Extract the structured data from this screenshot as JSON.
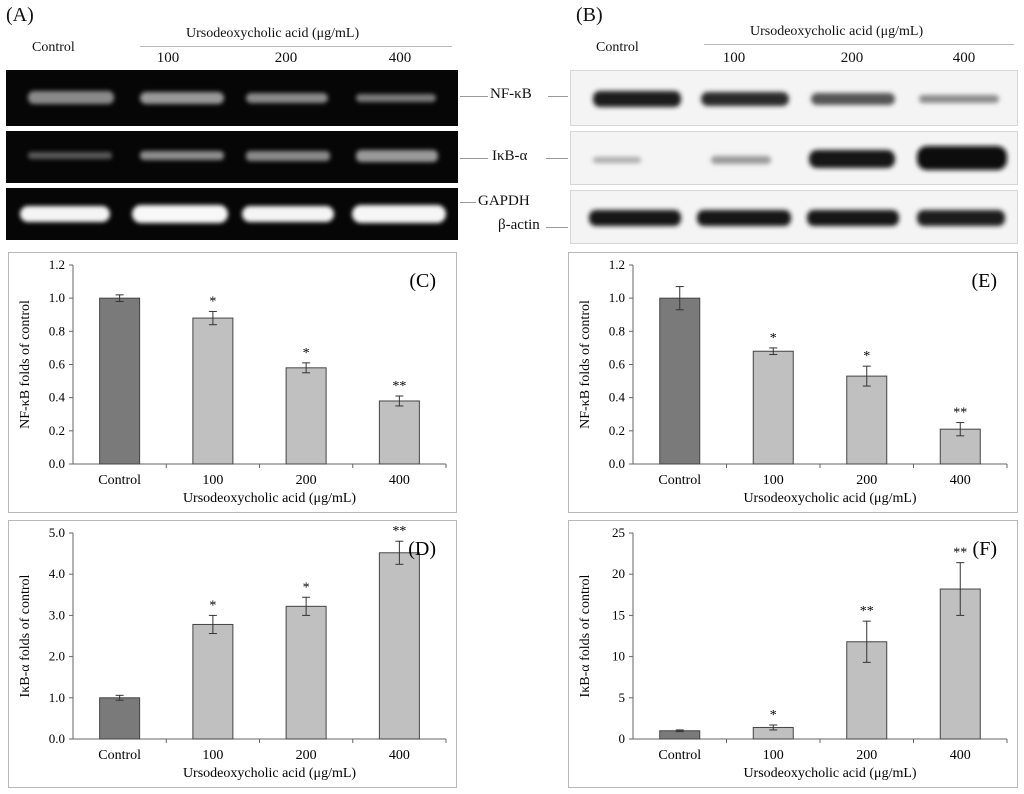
{
  "panels": {
    "A": "(A)",
    "B": "(B)"
  },
  "blots": {
    "left": {
      "control_label": "Control",
      "treatment_header": "Ursodeoxycholic acid (μg/mL)",
      "doses": [
        "100",
        "200",
        "400"
      ],
      "bands": [
        "NF-κB",
        "IκB-α",
        "GAPDH"
      ]
    },
    "right": {
      "control_label": "Control",
      "treatment_header": "Ursodeoxycholic acid (μg/mL)",
      "doses": [
        "100",
        "200",
        "400"
      ],
      "bands": [
        "NF-κB",
        "IκB-α",
        "β-actin"
      ]
    }
  },
  "chart_data": [
    {
      "panel": "(C)",
      "type": "bar",
      "categories": [
        "Control",
        "100",
        "200",
        "400"
      ],
      "values": [
        1.0,
        0.88,
        0.58,
        0.38
      ],
      "errors": [
        0.02,
        0.04,
        0.03,
        0.03
      ],
      "significance": [
        "",
        "*",
        "*",
        "**"
      ],
      "xlabel": "Ursodeoxycholic acid (μg/mL)",
      "ylabel": "NF-κB folds of control",
      "ylim": [
        0,
        1.2
      ],
      "yticks": [
        "0.0",
        "0.2",
        "0.4",
        "0.6",
        "0.8",
        "1.0",
        "1.2"
      ],
      "colors": [
        "#7a7a7a",
        "#c0c0c0",
        "#c0c0c0",
        "#c0c0c0"
      ]
    },
    {
      "panel": "(E)",
      "type": "bar",
      "categories": [
        "Control",
        "100",
        "200",
        "400"
      ],
      "values": [
        1.0,
        0.68,
        0.53,
        0.21
      ],
      "errors": [
        0.07,
        0.02,
        0.06,
        0.04
      ],
      "significance": [
        "",
        "*",
        "*",
        "**"
      ],
      "xlabel": "Ursodeoxycholic acid (μg/mL)",
      "ylabel": "NF-κB folds of control",
      "ylim": [
        0,
        1.2
      ],
      "yticks": [
        "0.0",
        "0.2",
        "0.4",
        "0.6",
        "0.8",
        "1.0",
        "1.2"
      ],
      "colors": [
        "#7a7a7a",
        "#c0c0c0",
        "#c0c0c0",
        "#c0c0c0"
      ]
    },
    {
      "panel": "(D)",
      "type": "bar",
      "categories": [
        "Control",
        "100",
        "200",
        "400"
      ],
      "values": [
        1.0,
        2.78,
        3.22,
        4.52
      ],
      "errors": [
        0.06,
        0.22,
        0.22,
        0.28
      ],
      "significance": [
        "",
        "*",
        "*",
        "**"
      ],
      "xlabel": "Ursodeoxycholic acid (μg/mL)",
      "ylabel": "IκB-α folds of control",
      "ylim": [
        0,
        5.0
      ],
      "yticks": [
        "0.0",
        "1.0",
        "2.0",
        "3.0",
        "4.0",
        "5.0"
      ],
      "colors": [
        "#7a7a7a",
        "#c0c0c0",
        "#c0c0c0",
        "#c0c0c0"
      ]
    },
    {
      "panel": "(F)",
      "type": "bar",
      "categories": [
        "Control",
        "100",
        "200",
        "400"
      ],
      "values": [
        1.0,
        1.4,
        11.8,
        18.2
      ],
      "errors": [
        0.1,
        0.3,
        2.5,
        3.2
      ],
      "significance": [
        "",
        "*",
        "**",
        "**"
      ],
      "xlabel": "Ursodeoxycholic acid (μg/mL)",
      "ylabel": "IκB-α folds of control",
      "ylim": [
        0,
        25
      ],
      "yticks": [
        "0",
        "5",
        "10",
        "15",
        "20",
        "25"
      ],
      "colors": [
        "#7a7a7a",
        "#c0c0c0",
        "#c0c0c0",
        "#c0c0c0"
      ]
    }
  ]
}
